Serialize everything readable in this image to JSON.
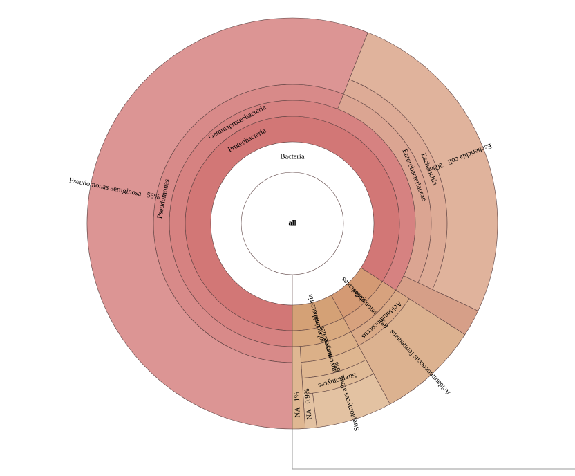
{
  "chart_data": {
    "type": "sunburst",
    "root": {
      "name": "all",
      "children": [
        {
          "name": "Bacteria",
          "color": "#cd6b6b",
          "children": [
            {
              "name": "Proteobacteria",
              "color": "#d27776",
              "children": [
                {
                  "name": "Gammaproteobacteria",
                  "color": "#d68281",
                  "children": [
                    {
                      "name": "Pseudomonas",
                      "color": "#d88a89",
                      "children": [
                        {
                          "name": "Pseudomonas aeruginosa",
                          "color": "#dc9594",
                          "value": 56,
                          "value_label": "56%"
                        }
                      ]
                    },
                    {
                      "name": "Enterobacteriaceae",
                      "color": "#dba592",
                      "children": [
                        {
                          "name": "Escherichia",
                          "color": "#ddab96",
                          "children": [
                            {
                              "name": "Escherichia coli",
                              "color": "#e0b39c",
                              "value": 26,
                              "value_label": "26%"
                            }
                          ]
                        }
                      ]
                    },
                    {
                      "name": null,
                      "color": "#d69f88",
                      "value": 2.1
                    }
                  ]
                }
              ]
            },
            {
              "name": "Negativicutes",
              "color": "#d49a74",
              "children": [
                {
                  "name": "Selenomonadales",
                  "color": "#d7a27e",
                  "children": [
                    {
                      "name": "Acidaminococcus",
                      "color": "#d9a986",
                      "children": [
                        {
                          "name": "Acidaminococcus fermentans",
                          "color": "#dcb290",
                          "value": 8,
                          "value_label": "8%"
                        }
                      ]
                    }
                  ]
                }
              ]
            },
            {
              "name": "Actinobacteria",
              "color": "#d4a176",
              "children": [
                {
                  "name": "Actinobacteria",
                  "color": "#d8a97f",
                  "children": [
                    {
                      "name": "Actinomycetales",
                      "color": "#dbb088",
                      "children": [
                        {
                          "name": "Streptomycetaceae",
                          "color": "#deb690",
                          "children": [
                            {
                              "name": "Streptomyces",
                              "color": "#e0bb97",
                              "children": [
                                {
                                  "name": "Streptomyces albus",
                                  "color": "#e3c2a2",
                                  "value": 6,
                                  "value_label": "6%"
                                },
                                {
                                  "name": "NA",
                                  "color": "#e3c2a2",
                                  "value": 0.9,
                                  "value_label": "0.9%"
                                }
                              ]
                            }
                          ]
                        }
                      ]
                    },
                    {
                      "name": "NA",
                      "color": "#dfb792",
                      "value": 1,
                      "value_label": "1%"
                    }
                  ]
                }
              ]
            }
          ]
        }
      ]
    }
  }
}
